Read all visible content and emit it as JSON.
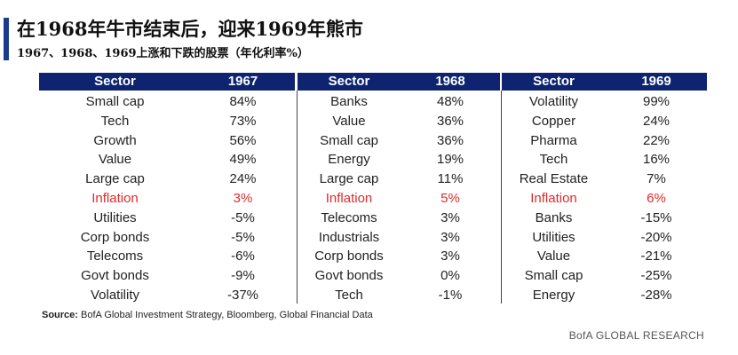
{
  "title": "在1968年牛市结束后，迎来1969年熊市",
  "subtitle": "1967、1968、1969上涨和下跌的股票（年化利率%）",
  "table": {
    "groups": [
      {
        "sector_header": "Sector",
        "year_header": "1967",
        "rows": [
          {
            "sector": "Small cap",
            "value": "84%"
          },
          {
            "sector": "Tech",
            "value": "73%"
          },
          {
            "sector": "Growth",
            "value": "56%"
          },
          {
            "sector": "Value",
            "value": "49%"
          },
          {
            "sector": "Large cap",
            "value": "24%"
          },
          {
            "sector": "Inflation",
            "value": "3%"
          },
          {
            "sector": "Utilities",
            "value": "-5%"
          },
          {
            "sector": "Corp bonds",
            "value": "-5%"
          },
          {
            "sector": "Telecoms",
            "value": "-6%"
          },
          {
            "sector": "Govt bonds",
            "value": "-9%"
          },
          {
            "sector": "Volatility",
            "value": "-37%"
          }
        ]
      },
      {
        "sector_header": "Sector",
        "year_header": "1968",
        "rows": [
          {
            "sector": "Banks",
            "value": "48%"
          },
          {
            "sector": "Value",
            "value": "36%"
          },
          {
            "sector": "Small cap",
            "value": "36%"
          },
          {
            "sector": "Energy",
            "value": "19%"
          },
          {
            "sector": "Large cap",
            "value": "11%"
          },
          {
            "sector": "Inflation",
            "value": "5%"
          },
          {
            "sector": "Telecoms",
            "value": "3%"
          },
          {
            "sector": "Industrials",
            "value": "3%"
          },
          {
            "sector": "Corp bonds",
            "value": "3%"
          },
          {
            "sector": "Govt bonds",
            "value": "0%"
          },
          {
            "sector": "Tech",
            "value": "-1%"
          }
        ]
      },
      {
        "sector_header": "Sector",
        "year_header": "1969",
        "rows": [
          {
            "sector": "Volatility",
            "value": "99%"
          },
          {
            "sector": "Copper",
            "value": "24%"
          },
          {
            "sector": "Pharma",
            "value": "22%"
          },
          {
            "sector": "Tech",
            "value": "16%"
          },
          {
            "sector": "Real Estate",
            "value": "7%"
          },
          {
            "sector": "Inflation",
            "value": "6%"
          },
          {
            "sector": "Banks",
            "value": "-15%"
          },
          {
            "sector": "Utilities",
            "value": "-20%"
          },
          {
            "sector": "Value",
            "value": "-21%"
          },
          {
            "sector": "Small cap",
            "value": "-25%"
          },
          {
            "sector": "Energy",
            "value": "-28%"
          }
        ]
      }
    ],
    "highlight_sector": "Inflation",
    "highlight_color": "#e02b2b",
    "header_color": "#0e2470"
  },
  "source": {
    "label": "Source:",
    "text": "BofA Global Investment Strategy, Bloomberg, Global Financial Data"
  },
  "brand": "BofA GLOBAL RESEARCH"
}
